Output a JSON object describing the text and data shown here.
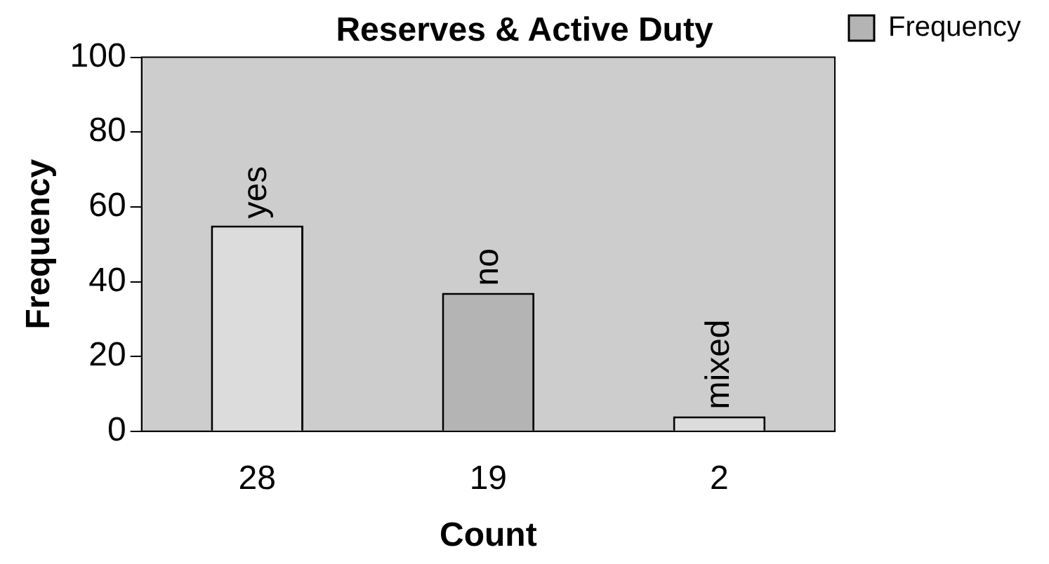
{
  "chart_data": {
    "type": "bar",
    "title": "Reserves & Active Duty",
    "xlabel": "Count",
    "ylabel": "Frequency",
    "categories": [
      "28",
      "19",
      "2"
    ],
    "series": [
      {
        "name": "Frequency",
        "color": "#b4b4b4",
        "colors": [
          "#dcdcdc",
          "#b4b4b4",
          "#dcdcdc"
        ],
        "values": [
          55,
          37,
          4
        ]
      }
    ],
    "ylim": [
      0,
      100
    ],
    "yticks": [
      0,
      20,
      40,
      60,
      80,
      100
    ],
    "grid": false,
    "legend": "right",
    "annotations": [
      {
        "text": "yes",
        "x": "28",
        "y": 55
      },
      {
        "text": "no",
        "x": "19",
        "y": 37
      },
      {
        "text": "mixed",
        "x": "2",
        "y": 4
      }
    ]
  }
}
